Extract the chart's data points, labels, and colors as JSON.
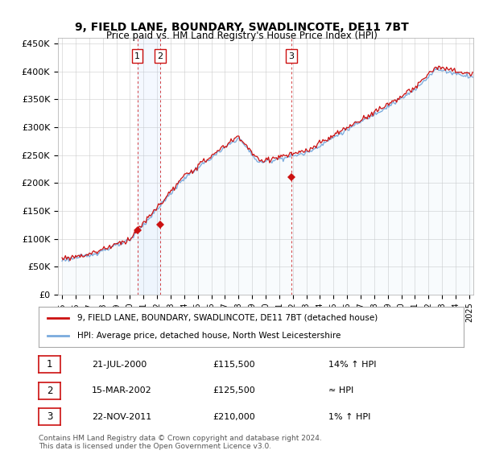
{
  "title": "9, FIELD LANE, BOUNDARY, SWADLINCOTE, DE11 7BT",
  "subtitle": "Price paid vs. HM Land Registry's House Price Index (HPI)",
  "yticks": [
    0,
    50000,
    100000,
    150000,
    200000,
    250000,
    300000,
    350000,
    400000,
    450000
  ],
  "ytick_labels": [
    "£0",
    "£50K",
    "£100K",
    "£150K",
    "£200K",
    "£250K",
    "£300K",
    "£350K",
    "£400K",
    "£450K"
  ],
  "hpi_color": "#7aaadd",
  "price_color": "#cc1111",
  "sale_color": "#cc1111",
  "vline_color": "#cc1111",
  "fill_color": "#cce0f5",
  "bg_color": "#ffffff",
  "grid_color": "#cccccc",
  "legend_label_price": "9, FIELD LANE, BOUNDARY, SWADLINCOTE, DE11 7BT (detached house)",
  "legend_label_hpi": "HPI: Average price, detached house, North West Leicestershire",
  "sale_years": [
    2000.55,
    2002.21,
    2011.9
  ],
  "sale_prices": [
    115500,
    125500,
    210000
  ],
  "sale_labels": [
    "1",
    "2",
    "3"
  ],
  "table_rows": [
    {
      "num": "1",
      "date": "21-JUL-2000",
      "price": "£115,500",
      "relation": "14% ↑ HPI"
    },
    {
      "num": "2",
      "date": "15-MAR-2002",
      "price": "£125,500",
      "relation": "≈ HPI"
    },
    {
      "num": "3",
      "date": "22-NOV-2011",
      "price": "£210,000",
      "relation": "1% ↑ HPI"
    }
  ],
  "footnote": "Contains HM Land Registry data © Crown copyright and database right 2024.\nThis data is licensed under the Open Government Licence v3.0.",
  "xlim": [
    1994.7,
    2025.3
  ],
  "ylim": [
    0,
    460000
  ]
}
